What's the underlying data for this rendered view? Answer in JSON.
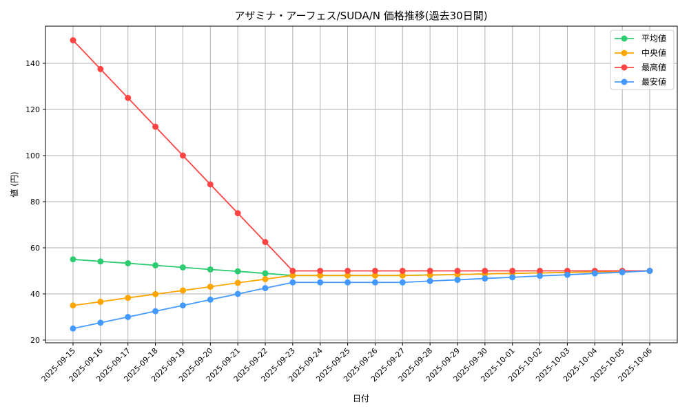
{
  "chart_data": {
    "type": "line",
    "title": "アザミナ・アーフェス/SUDA/N 価格推移(過去30日間)",
    "xlabel": "日付",
    "ylabel": "値 (円)",
    "ylim": [
      18.75,
      156.25
    ],
    "yticks": [
      20,
      40,
      60,
      80,
      100,
      120,
      140
    ],
    "grid": true,
    "legend_position": "top-right",
    "x": [
      "2025-09-15",
      "2025-09-16",
      "2025-09-17",
      "2025-09-18",
      "2025-09-19",
      "2025-09-20",
      "2025-09-21",
      "2025-09-22",
      "2025-09-23",
      "2025-09-24",
      "2025-09-25",
      "2025-09-26",
      "2025-09-27",
      "2025-09-28",
      "2025-09-29",
      "2025-09-30",
      "2025-10-01",
      "2025-10-02",
      "2025-10-03",
      "2025-10-04",
      "2025-10-05",
      "2025-10-06"
    ],
    "series": [
      {
        "name": "平均値",
        "color": "#2ecc71",
        "values": [
          55,
          54.1,
          53.3,
          52.4,
          51.5,
          50.6,
          49.8,
          48.9,
          48,
          48,
          48,
          48,
          48,
          48.2,
          48.4,
          48.7,
          48.9,
          49.1,
          49.3,
          49.6,
          49.8,
          50
        ]
      },
      {
        "name": "中央値",
        "color": "#ffa500",
        "values": [
          35,
          36.6,
          38.3,
          39.9,
          41.5,
          43.1,
          44.8,
          46.4,
          48,
          48,
          48,
          48,
          48,
          48.2,
          48.4,
          48.7,
          48.9,
          49.1,
          49.3,
          49.6,
          49.8,
          50
        ]
      },
      {
        "name": "最高値",
        "color": "#ff4444",
        "values": [
          150,
          137.5,
          125,
          112.5,
          100,
          87.5,
          75,
          62.5,
          50,
          50,
          50,
          50,
          50,
          50,
          50,
          50,
          50,
          50,
          50,
          50,
          50,
          50
        ]
      },
      {
        "name": "最安値",
        "color": "#4499ff",
        "values": [
          25,
          27.5,
          30,
          32.5,
          35,
          37.5,
          40,
          42.5,
          45,
          45,
          45,
          45,
          45,
          45.6,
          46.1,
          46.7,
          47.2,
          47.8,
          48.3,
          48.9,
          49.4,
          50
        ]
      }
    ]
  }
}
